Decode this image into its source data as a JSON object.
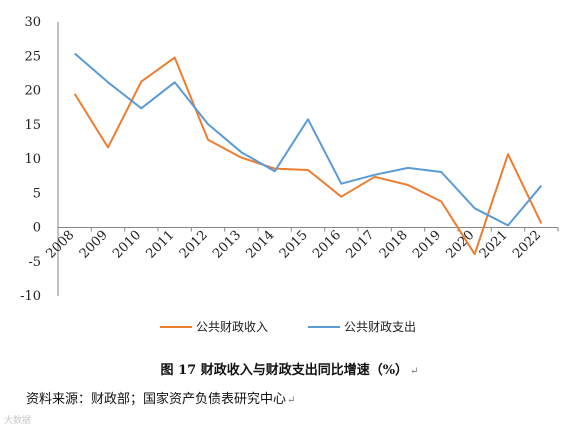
{
  "chart_data": {
    "type": "line",
    "categories": [
      "2008",
      "2009",
      "2010",
      "2011",
      "2012",
      "2013",
      "2014",
      "2015",
      "2016",
      "2017",
      "2018",
      "2019",
      "2020",
      "2021",
      "2022"
    ],
    "series": [
      {
        "name": "公共财政收入",
        "color": "#ED7D31",
        "values": [
          19.5,
          11.7,
          21.3,
          24.8,
          12.8,
          10.2,
          8.6,
          8.4,
          4.5,
          7.4,
          6.2,
          3.8,
          -3.9,
          10.7,
          0.6
        ]
      },
      {
        "name": "公共财政支出",
        "color": "#5B9BD5",
        "values": [
          25.4,
          21.2,
          17.4,
          21.2,
          15.1,
          11.0,
          8.2,
          15.8,
          6.4,
          7.7,
          8.7,
          8.1,
          2.8,
          0.3,
          6.1
        ]
      }
    ],
    "ylim": [
      -10,
      30
    ],
    "yticks": [
      -10,
      -5,
      0,
      5,
      10,
      15,
      20,
      25,
      30
    ],
    "grid": false,
    "legend_position": "bottom",
    "xlabel": "",
    "ylabel": ""
  },
  "caption": {
    "title": "图 17  财政收入与财政支出同比增速（%）",
    "end_mark": "↵"
  },
  "source": {
    "text": "资料来源：财政部；国家资产负债表研究中心",
    "end_mark": "↵"
  },
  "watermark": {
    "text": "大数据"
  }
}
